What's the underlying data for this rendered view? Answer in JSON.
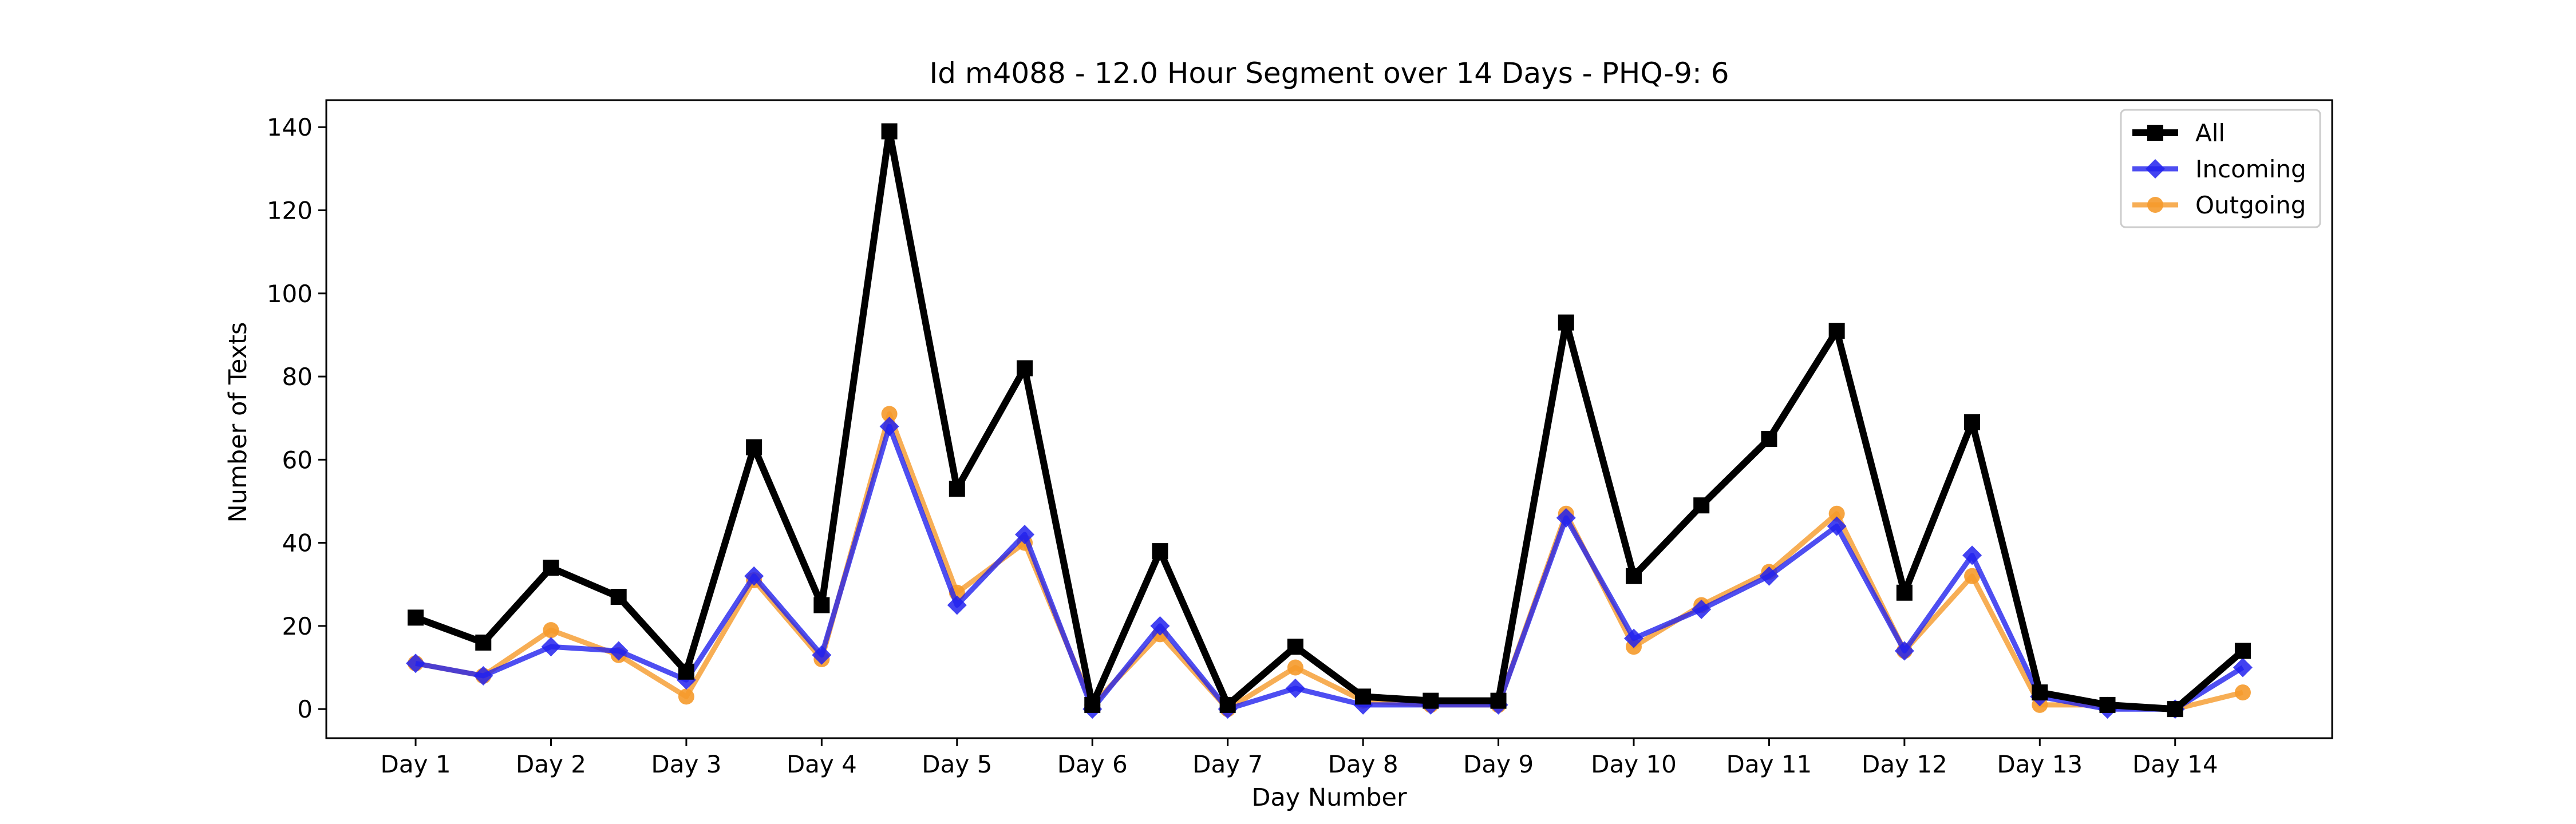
{
  "chart_data": {
    "type": "line",
    "title": "Id m4088 - 12.0 Hour Segment over 14 Days - PHQ-9: 6",
    "xlabel": "Day Number",
    "ylabel": "Number of Texts",
    "x_tick_labels": [
      "Day 1",
      "Day 2",
      "Day 3",
      "Day 4",
      "Day 5",
      "Day 6",
      "Day 7",
      "Day 8",
      "Day 9",
      "Day 10",
      "Day 11",
      "Day 12",
      "Day 13",
      "Day 14"
    ],
    "x": [
      1,
      1.5,
      2,
      2.5,
      3,
      3.5,
      4,
      4.5,
      5,
      5.5,
      6,
      6.5,
      7,
      7.5,
      8,
      8.5,
      9,
      9.5,
      10,
      10.5,
      11,
      11.5,
      12,
      12.5,
      13,
      13.5,
      14,
      14.5
    ],
    "xlim": [
      0.34,
      15.16
    ],
    "ylim": [
      -7,
      146.5
    ],
    "y_ticks": [
      0,
      20,
      40,
      60,
      80,
      100,
      120,
      140
    ],
    "grid": false,
    "legend_position": "top-right",
    "series": [
      {
        "name": "All",
        "color": "#000000",
        "marker": "square",
        "values": [
          22,
          16,
          34,
          27,
          9,
          63,
          25,
          139,
          53,
          82,
          1,
          38,
          1,
          15,
          3,
          2,
          2,
          93,
          32,
          49,
          65,
          91,
          28,
          69,
          4,
          1,
          0,
          14
        ]
      },
      {
        "name": "Incoming",
        "color": "#2222ee",
        "marker": "diamond",
        "values": [
          11,
          8,
          15,
          14,
          7,
          32,
          13,
          68,
          25,
          42,
          0,
          20,
          0,
          5,
          1,
          1,
          1,
          46,
          17,
          24,
          32,
          44,
          14,
          37,
          3,
          0,
          0,
          10
        ]
      },
      {
        "name": "Outgoing",
        "color": "#f59a2b",
        "marker": "circle",
        "values": [
          11,
          8,
          19,
          13,
          3,
          31,
          12,
          71,
          28,
          40,
          1,
          18,
          0,
          10,
          2,
          1,
          1,
          47,
          15,
          25,
          33,
          47,
          14,
          32,
          1,
          1,
          0,
          4
        ]
      }
    ]
  }
}
